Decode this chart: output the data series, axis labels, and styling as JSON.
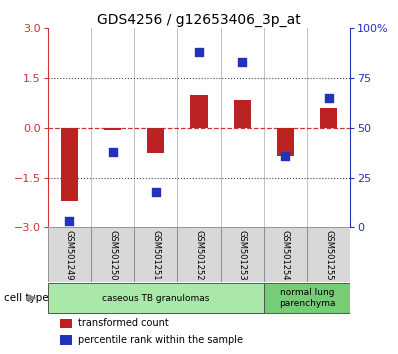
{
  "title": "GDS4256 / g12653406_3p_at",
  "samples": [
    "GSM501249",
    "GSM501250",
    "GSM501251",
    "GSM501252",
    "GSM501253",
    "GSM501254",
    "GSM501255"
  ],
  "transformed_counts": [
    -2.2,
    -0.05,
    -0.75,
    1.0,
    0.85,
    -0.85,
    0.6
  ],
  "percentile_ranks": [
    3,
    38,
    18,
    88,
    83,
    36,
    65
  ],
  "ylim_left": [
    -3,
    3
  ],
  "yticks_left": [
    -3,
    -1.5,
    0,
    1.5,
    3
  ],
  "yticks_right_pct": [
    0,
    25,
    50,
    75,
    100
  ],
  "bar_color": "#bb2222",
  "dot_color": "#2233bb",
  "hline_color": "#cc3333",
  "dotted_color": "#444444",
  "cell_type_groups": [
    {
      "label": "caseous TB granulomas",
      "start": 0,
      "end": 5,
      "color": "#aae8aa"
    },
    {
      "label": "normal lung\nparenchyma",
      "start": 5,
      "end": 7,
      "color": "#77cc77"
    }
  ],
  "legend_items": [
    {
      "label": "transformed count",
      "color": "#bb2222"
    },
    {
      "label": "percentile rank within the sample",
      "color": "#2233bb"
    }
  ],
  "title_fontsize": 10,
  "tick_fontsize": 8,
  "cell_type_label": "cell type",
  "background_color": "#ffffff",
  "left_tick_color": "#cc3333",
  "right_tick_color": "#2233bb",
  "bar_width": 0.4,
  "dot_size": 35
}
